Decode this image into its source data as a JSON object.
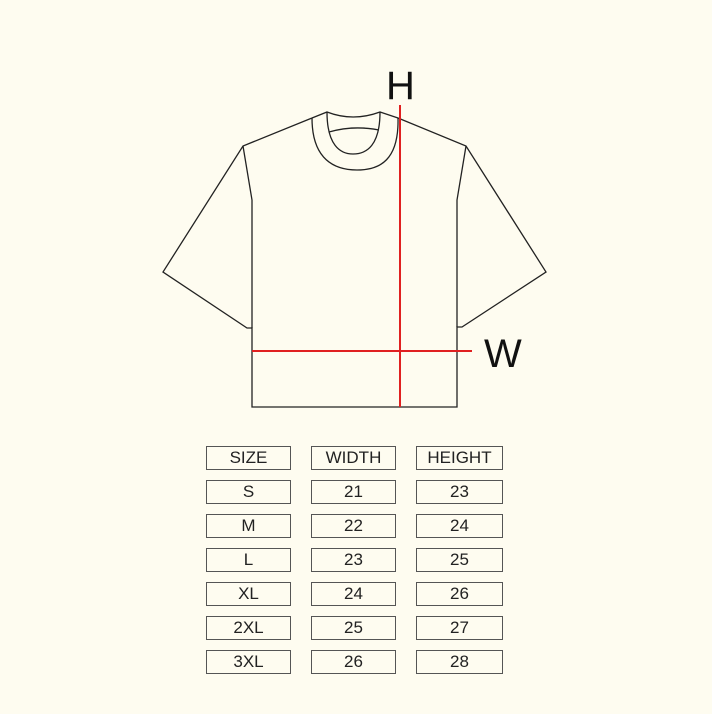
{
  "diagram": {
    "height_label": "H",
    "width_label": "W",
    "measure_color": "#e02020",
    "outline_color": "#222222"
  },
  "table": {
    "headers": [
      "SIZE",
      "WIDTH",
      "HEIGHT"
    ],
    "rows": [
      [
        "S",
        "21",
        "23"
      ],
      [
        "M",
        "22",
        "24"
      ],
      [
        "L",
        "23",
        "25"
      ],
      [
        "XL",
        "24",
        "26"
      ],
      [
        "2XL",
        "25",
        "27"
      ],
      [
        "3XL",
        "26",
        "28"
      ]
    ]
  }
}
